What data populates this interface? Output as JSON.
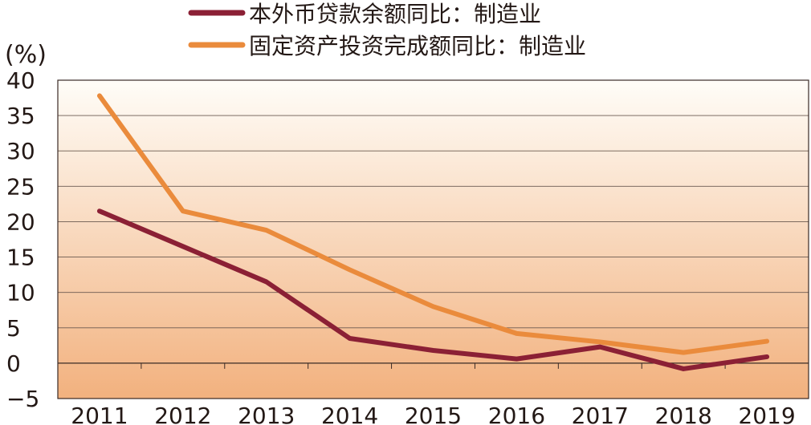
{
  "chart_data": {
    "type": "line",
    "title": "",
    "ylabel": "(%)",
    "xlabel": "",
    "categories": [
      "2011",
      "2012",
      "2013",
      "2014",
      "2015",
      "2016",
      "2017",
      "2018",
      "2019"
    ],
    "ylim": [
      -5,
      40
    ],
    "yticks": [
      40,
      35,
      30,
      25,
      20,
      15,
      10,
      5,
      0,
      -5
    ],
    "ytick_labels": [
      "40",
      "35",
      "30",
      "25",
      "20",
      "15",
      "10",
      "5",
      "0",
      "−5"
    ],
    "legend_position": "top",
    "grid": true,
    "series": [
      {
        "name": "本外币贷款余额同比：制造业",
        "color": "#8b2035",
        "values": [
          21.5,
          16.5,
          11.5,
          3.5,
          1.8,
          0.6,
          2.3,
          -0.8,
          0.9
        ]
      },
      {
        "name": "固定资产投资完成额同比：制造业",
        "color": "#ea8b3c",
        "values": [
          37.8,
          21.5,
          18.8,
          13.2,
          8.0,
          4.2,
          3.0,
          1.5,
          3.1
        ]
      }
    ],
    "background": {
      "top": "#fffdf8",
      "bottom": "#f2b17e"
    }
  }
}
